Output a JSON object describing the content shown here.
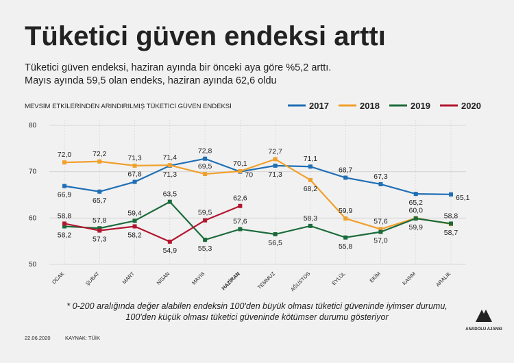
{
  "chart_data": {
    "type": "line",
    "title": "Tüketici güven endeksi arttı",
    "subtitle_lines": [
      "Tüketici güven endeksi, haziran ayında bir önceki aya göre %5,2 arttı.",
      "Mayıs ayında 59,5 olan endeks, haziran ayında 62,6 oldu"
    ],
    "chart_subtitle": "MEVSİM ETKİLERİNDEN ARINDIRILMIŞ TÜKETİCİ GÜVEN ENDEKSİ",
    "categories": [
      "OCAK",
      "ŞUBAT",
      "MART",
      "NİSAN",
      "MAYIS",
      "HAZİRAN",
      "TEMMUZ",
      "AĞUSTOS",
      "EYLÜL",
      "EKİM",
      "KASIM",
      "ARALIK"
    ],
    "highlight_category": 5,
    "series": [
      {
        "name": "2017",
        "color": "#1f6fb5",
        "values": [
          66.9,
          65.7,
          67.8,
          71.3,
          72.8,
          70,
          71.3,
          71.1,
          68.7,
          67.3,
          65.2,
          65.1
        ],
        "value_labels": [
          "66,9",
          "65,7",
          "67,8",
          "71,3",
          "72,8",
          "70",
          "71,3",
          "71,1",
          "68,7",
          "67,3",
          "65,2",
          "65,1"
        ]
      },
      {
        "name": "2018",
        "color": "#f0a02c",
        "values": [
          72.0,
          72.2,
          71.3,
          71.4,
          69.5,
          70.1,
          72.7,
          68.2,
          59.9,
          57.6,
          60.0,
          58.7
        ],
        "value_labels": [
          "72,0",
          "72,2",
          "71,3",
          "71,4",
          "69,5",
          "70,1",
          "72,7",
          "68,2",
          "59,9",
          "57,6",
          "60,0",
          "58,7"
        ]
      },
      {
        "name": "2019",
        "color": "#1b6b3a",
        "values": [
          58.2,
          57.8,
          59.4,
          63.5,
          55.3,
          57.6,
          56.5,
          58.3,
          55.8,
          57.0,
          59.9,
          58.8
        ],
        "value_labels": [
          "58,2",
          "57,8",
          "59,4",
          "63,5",
          "55,3",
          "57,6",
          "56,5",
          "58,3",
          "55,8",
          "57,0",
          "59,9",
          "58,8"
        ]
      },
      {
        "name": "2020",
        "color": "#b3162f",
        "values": [
          58.8,
          57.3,
          58.2,
          54.9,
          59.5,
          62.6,
          null,
          null,
          null,
          null,
          null,
          null
        ],
        "value_labels": [
          "58,8",
          "57,3",
          "58,2",
          "54,9",
          "59,5",
          "62,6",
          null,
          null,
          null,
          null,
          null,
          null
        ]
      }
    ],
    "ylim": [
      50,
      80
    ],
    "yticks": [
      50,
      60,
      70,
      80
    ],
    "footnote_lines": [
      "* 0-200 aralığında değer alabilen endeksin 100'den büyük olması tüketici güveninde iyimser durumu,",
      "100'den küçük olması tüketici güveninde kötümser durumu gösteriyor"
    ],
    "date": "22.06.2020",
    "source": "KAYNAK: TÜİK",
    "logo": "ANADOLU AJANSI"
  }
}
